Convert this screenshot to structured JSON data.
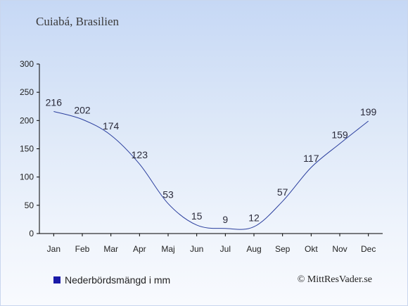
{
  "chart_data": {
    "type": "line",
    "title": "Cuiabá, Brasilien",
    "categories": [
      "Jan",
      "Feb",
      "Mar",
      "Apr",
      "Maj",
      "Jun",
      "Jul",
      "Aug",
      "Sep",
      "Okt",
      "Nov",
      "Dec"
    ],
    "series": [
      {
        "name": "Nederbördsmängd i mm",
        "values": [
          216,
          202,
          174,
          123,
          53,
          15,
          9,
          12,
          57,
          117,
          159,
          199
        ]
      }
    ],
    "yticks": [
      "0",
      "50",
      "100",
      "150",
      "200",
      "250",
      "300"
    ],
    "ylim": [
      0,
      300
    ],
    "grid": false,
    "legend_position": "bottom-left",
    "line_color": "#2b3f9e",
    "legend_color": "#1a1aa8"
  },
  "copyright": "© MittResVader.se"
}
